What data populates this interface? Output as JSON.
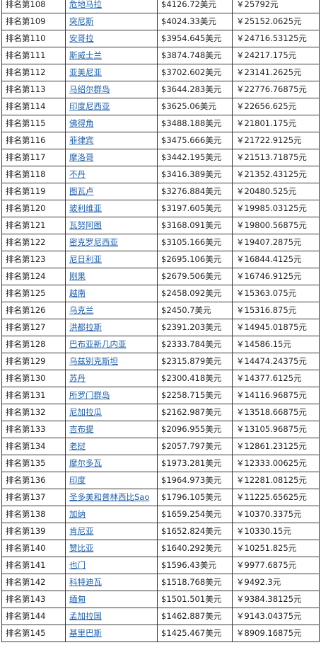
{
  "rows": [
    {
      "rank": "排名第108",
      "country": "危地马拉",
      "usd": "$4126.72美元",
      "cny": "￥25792元"
    },
    {
      "rank": "排名第109",
      "country": "突尼斯",
      "usd": "$4024.33美元",
      "cny": "￥25152.0625元"
    },
    {
      "rank": "排名第110",
      "country": "安哥拉",
      "usd": "$3954.645美元",
      "cny": "￥24716.53125元"
    },
    {
      "rank": "排名第111",
      "country": "斯威士兰",
      "usd": "$3874.748美元",
      "cny": "￥24217.175元"
    },
    {
      "rank": "排名第112",
      "country": "亚美尼亚",
      "usd": "$3702.602美元",
      "cny": "￥23141.2625元"
    },
    {
      "rank": "排名第113",
      "country": "马绍尔群岛",
      "usd": "$3644.283美元",
      "cny": "￥22776.76875元"
    },
    {
      "rank": "排名第114",
      "country": "印度尼西亚",
      "usd": "$3625.06美元",
      "cny": "￥22656.625元"
    },
    {
      "rank": "排名第115",
      "country": "佛得角",
      "usd": "$3488.188美元",
      "cny": "￥21801.175元"
    },
    {
      "rank": "排名第116",
      "country": "菲律宾",
      "usd": "$3475.666美元",
      "cny": "￥21722.9125元"
    },
    {
      "rank": "排名第117",
      "country": "摩洛哥",
      "usd": "$3442.195美元",
      "cny": "￥21513.71875元"
    },
    {
      "rank": "排名第118",
      "country": "不丹",
      "usd": "$3416.389美元",
      "cny": "￥21352.43125元"
    },
    {
      "rank": "排名第119",
      "country": "图瓦卢",
      "usd": "$3276.884美元",
      "cny": "￥20480.525元"
    },
    {
      "rank": "排名第120",
      "country": "玻利维亚",
      "usd": "$3197.605美元",
      "cny": "￥19985.03125元"
    },
    {
      "rank": "排名第121",
      "country": "瓦努阿图",
      "usd": "$3168.091美元",
      "cny": "￥19800.56875元"
    },
    {
      "rank": "排名第122",
      "country": "密克罗尼西亚",
      "usd": "$3105.166美元",
      "cny": "￥19407.2875元"
    },
    {
      "rank": "排名第123",
      "country": "尼日利亚",
      "usd": "$2695.106美元",
      "cny": "￥16844.4125元"
    },
    {
      "rank": "排名第124",
      "country": "刚果",
      "usd": "$2679.506美元",
      "cny": "￥16746.9125元"
    },
    {
      "rank": "排名第125",
      "country": "越南",
      "usd": "$2458.092美元",
      "cny": "￥15363.075元"
    },
    {
      "rank": "排名第126",
      "country": "乌克兰",
      "usd": "$2450.7美元",
      "cny": "￥15316.875元"
    },
    {
      "rank": "排名第127",
      "country": "洪都拉斯",
      "usd": "$2391.203美元",
      "cny": "￥14945.01875元"
    },
    {
      "rank": "排名第128",
      "country": "巴布亚新几内亚",
      "usd": "$2333.784美元",
      "cny": "￥14586.15元"
    },
    {
      "rank": "排名第129",
      "country": "乌兹别克斯坦",
      "usd": "$2315.879美元",
      "cny": "￥14474.24375元"
    },
    {
      "rank": "排名第130",
      "country": "苏丹",
      "usd": "$2300.418美元",
      "cny": "￥14377.6125元"
    },
    {
      "rank": "排名第131",
      "country": "所罗门群岛",
      "usd": "$2258.715美元",
      "cny": "￥14116.96875元"
    },
    {
      "rank": "排名第132",
      "country": "尼加拉瓜",
      "usd": "$2162.987美元",
      "cny": "￥13518.66875元"
    },
    {
      "rank": "排名第133",
      "country": "吉布提",
      "usd": "$2096.955美元",
      "cny": "￥13105.96875元"
    },
    {
      "rank": "排名第134",
      "country": "老挝",
      "usd": "$2057.797美元",
      "cny": "￥12861.23125元"
    },
    {
      "rank": "排名第135",
      "country": "摩尔多瓦",
      "usd": "$1973.281美元",
      "cny": "￥12333.00625元"
    },
    {
      "rank": "排名第136",
      "country": "印度",
      "usd": "$1964.973美元",
      "cny": "￥12281.08125元"
    },
    {
      "rank": "排名第137",
      "country": "圣多美和普林西比Sao",
      "usd": "$1796.105美元",
      "cny": "￥11225.65625元"
    },
    {
      "rank": "排名第138",
      "country": "加纳",
      "usd": "$1659.254美元",
      "cny": "￥10370.3375元"
    },
    {
      "rank": "排名第139",
      "country": "肯尼亚",
      "usd": "$1652.824美元",
      "cny": "￥10330.15元"
    },
    {
      "rank": "排名第140",
      "country": "赞比亚",
      "usd": "$1640.292美元",
      "cny": "￥10251.825元"
    },
    {
      "rank": "排名第141",
      "country": "也门",
      "usd": "$1596.43美元",
      "cny": "￥9977.6875元"
    },
    {
      "rank": "排名第142",
      "country": "科特迪瓦",
      "usd": "$1518.768美元",
      "cny": "￥9492.3元"
    },
    {
      "rank": "排名第143",
      "country": "缅甸",
      "usd": "$1501.501美元",
      "cny": "￥9384.38125元"
    },
    {
      "rank": "排名第144",
      "country": "孟加拉国",
      "usd": "$1462.887美元",
      "cny": "￥9143.04375元"
    },
    {
      "rank": "排名第145",
      "country": "基里巴斯",
      "usd": "$1425.467美元",
      "cny": "￥8909.16875元"
    }
  ]
}
